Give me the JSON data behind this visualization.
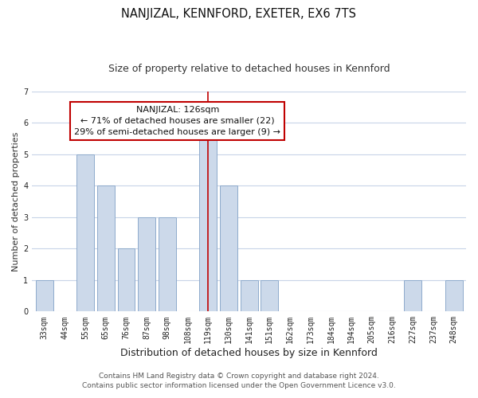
{
  "title": "NANJIZAL, KENNFORD, EXETER, EX6 7TS",
  "subtitle": "Size of property relative to detached houses in Kennford",
  "xlabel": "Distribution of detached houses by size in Kennford",
  "ylabel": "Number of detached properties",
  "categories": [
    "33sqm",
    "44sqm",
    "55sqm",
    "65sqm",
    "76sqm",
    "87sqm",
    "98sqm",
    "108sqm",
    "119sqm",
    "130sqm",
    "141sqm",
    "151sqm",
    "162sqm",
    "173sqm",
    "184sqm",
    "194sqm",
    "205sqm",
    "216sqm",
    "227sqm",
    "237sqm",
    "248sqm"
  ],
  "values": [
    1,
    0,
    5,
    4,
    2,
    3,
    3,
    0,
    6,
    4,
    1,
    1,
    0,
    0,
    0,
    0,
    0,
    0,
    1,
    0,
    1
  ],
  "highlight_index": 8,
  "highlight_color": "#c00000",
  "bar_color": "#ccd9ea",
  "bar_edge_color": "#8eaacc",
  "ylim": [
    0,
    7
  ],
  "yticks": [
    0,
    1,
    2,
    3,
    4,
    5,
    6,
    7
  ],
  "annotation_title": "NANJIZAL: 126sqm",
  "annotation_line1": "← 71% of detached houses are smaller (22)",
  "annotation_line2": "29% of semi-detached houses are larger (9) →",
  "footer1": "Contains HM Land Registry data © Crown copyright and database right 2024.",
  "footer2": "Contains public sector information licensed under the Open Government Licence v3.0.",
  "background_color": "#ffffff",
  "grid_color": "#c8d4e8",
  "title_fontsize": 10.5,
  "subtitle_fontsize": 9,
  "xlabel_fontsize": 9,
  "ylabel_fontsize": 8,
  "tick_fontsize": 7,
  "annotation_fontsize": 8,
  "footer_fontsize": 6.5
}
